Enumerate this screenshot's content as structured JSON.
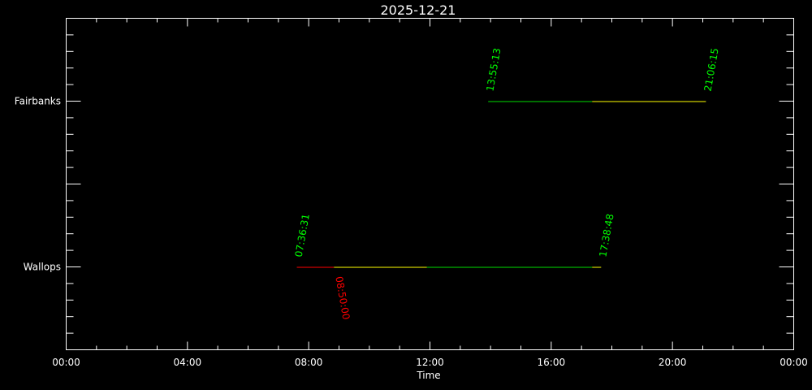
{
  "chart_data": {
    "type": "timeline",
    "title": "2025-12-21",
    "xlabel": "Time",
    "x_range": [
      "00:00",
      "24:00"
    ],
    "x_tick_labels": [
      "00:00",
      "04:00",
      "08:00",
      "12:00",
      "16:00",
      "20:00",
      "00:00"
    ],
    "categories": [
      "Wallops",
      "Fairbanks"
    ],
    "colors": {
      "background": "#000000",
      "axes": "#ffffff",
      "label_green": "#00ff00",
      "label_red": "#ff0000",
      "red": "#ff0000",
      "yellow": "#ffff00",
      "green": "#00dd00"
    },
    "series": [
      {
        "name": "Wallops",
        "segments": [
          {
            "start": "07:36:31",
            "end": "08:50:00",
            "color": "red"
          },
          {
            "start": "08:50:00",
            "end": "11:54:00",
            "color": "yellow"
          },
          {
            "start": "11:54:00",
            "end": "17:21:00",
            "color": "green"
          },
          {
            "start": "17:21:00",
            "end": "17:38:48",
            "color": "yellow"
          }
        ],
        "labels": [
          {
            "text": "07:36:31",
            "time": "07:36:31",
            "color": "label_green",
            "side": "above"
          },
          {
            "text": "17:38:48",
            "time": "17:38:48",
            "color": "label_green",
            "side": "above"
          },
          {
            "text": "08:50:00",
            "time": "08:50:00",
            "color": "label_red",
            "side": "below"
          }
        ]
      },
      {
        "name": "Fairbanks",
        "segments": [
          {
            "start": "13:55:13",
            "end": "17:21:00",
            "color": "green"
          },
          {
            "start": "17:21:00",
            "end": "21:06:15",
            "color": "yellow"
          }
        ],
        "labels": [
          {
            "text": "13:55:13",
            "time": "13:55:13",
            "color": "label_green",
            "side": "above"
          },
          {
            "text": "21:06:15",
            "time": "21:06:15",
            "color": "label_green",
            "side": "above"
          }
        ]
      }
    ]
  }
}
